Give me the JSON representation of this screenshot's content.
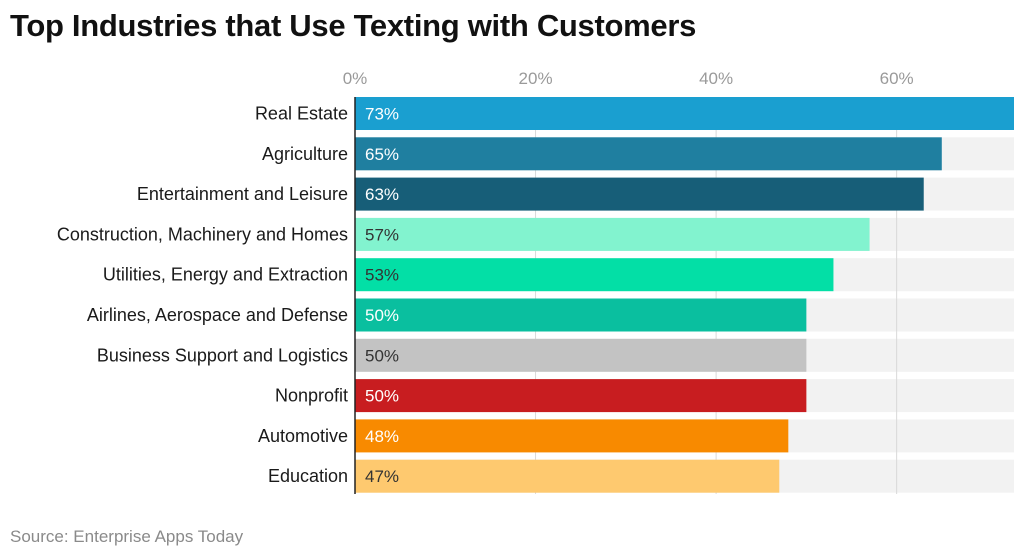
{
  "title": "Top Industries that Use Texting with Customers",
  "source": "Source: Enterprise Apps Today",
  "chart_data": {
    "type": "bar",
    "orientation": "horizontal",
    "title": "Top Industries that Use Texting with Customers",
    "xlabel": "",
    "ylabel": "",
    "xlim": [
      0,
      73
    ],
    "x_ticks": [
      0,
      20,
      40,
      60
    ],
    "x_tick_labels": [
      "0%",
      "20%",
      "40%",
      "60%"
    ],
    "grid": true,
    "categories": [
      "Real Estate",
      "Agriculture",
      "Entertainment and Leisure",
      "Construction, Machinery and Homes",
      "Utilities, Energy and Extraction",
      "Airlines, Aerospace and Defense",
      "Business Support and Logistics",
      "Nonprofit",
      "Automotive",
      "Education"
    ],
    "values": [
      73,
      65,
      63,
      57,
      53,
      50,
      50,
      50,
      48,
      47
    ],
    "value_labels": [
      "73%",
      "65%",
      "63%",
      "57%",
      "53%",
      "50%",
      "50%",
      "50%",
      "48%",
      "47%"
    ],
    "colors": [
      "#1a9fd0",
      "#1f7fa0",
      "#175e78",
      "#82f3cf",
      "#03dfa6",
      "#0abf9f",
      "#c3c3c3",
      "#c81d20",
      "#f88a00",
      "#fec96f"
    ],
    "label_colors": [
      "#ffffff",
      "#ffffff",
      "#ffffff",
      "#333333",
      "#333333",
      "#ffffff",
      "#333333",
      "#ffffff",
      "#ffffff",
      "#333333"
    ],
    "track_color": "#f2f2f2",
    "grid_color": "#d9d9d9"
  }
}
